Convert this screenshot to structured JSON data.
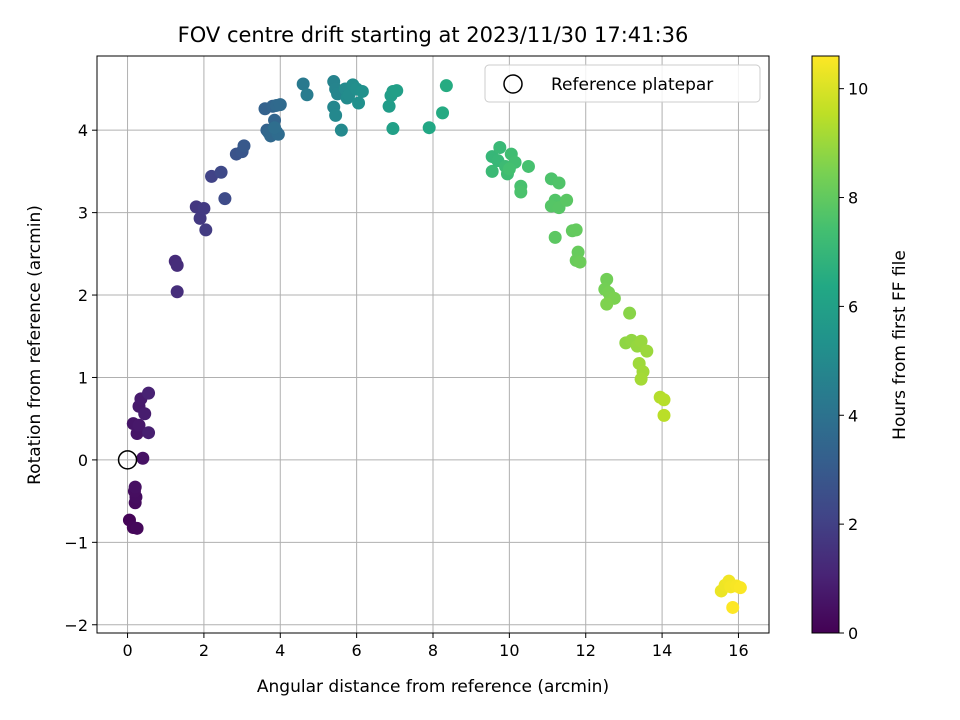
{
  "chart_data": {
    "type": "scatter",
    "title": "FOV centre drift starting at 2023/11/30 17:41:36",
    "xlabel": "Angular distance from reference (arcmin)",
    "ylabel": "Rotation from reference (arcmin)",
    "xlim": [
      -0.8,
      16.8
    ],
    "ylim": [
      -2.1,
      4.9
    ],
    "xticks": [
      0,
      2,
      4,
      6,
      8,
      10,
      12,
      14,
      16
    ],
    "yticks": [
      -2,
      -1,
      0,
      1,
      2,
      3,
      4
    ],
    "xtick_labels": [
      "0",
      "2",
      "4",
      "6",
      "8",
      "10",
      "12",
      "14",
      "16"
    ],
    "ytick_labels": [
      "−2",
      "−1",
      "0",
      "1",
      "2",
      "3",
      "4"
    ],
    "grid": true,
    "legend": {
      "position": "top-right",
      "entries": [
        "Reference platepar"
      ]
    },
    "reference_point": {
      "x": 0,
      "y": 0
    },
    "colorbar": {
      "label": "Hours from first FF file",
      "min": 0,
      "max": 10.6,
      "ticks": [
        0,
        2,
        4,
        6,
        8,
        10
      ],
      "tick_labels": [
        "0",
        "2",
        "4",
        "6",
        "8",
        "10"
      ],
      "colormap": "viridis"
    },
    "points": [
      {
        "x": 0.05,
        "y": -0.73,
        "c": 0.1
      },
      {
        "x": 0.15,
        "y": -0.82,
        "c": 0.15
      },
      {
        "x": 0.25,
        "y": -0.83,
        "c": 0.2
      },
      {
        "x": 0.2,
        "y": -0.52,
        "c": 0.3
      },
      {
        "x": 0.22,
        "y": -0.45,
        "c": 0.35
      },
      {
        "x": 0.18,
        "y": -0.38,
        "c": 0.4
      },
      {
        "x": 0.2,
        "y": -0.33,
        "c": 0.45
      },
      {
        "x": 0.4,
        "y": 0.02,
        "c": 0.5
      },
      {
        "x": 0.25,
        "y": 0.32,
        "c": 0.6
      },
      {
        "x": 0.15,
        "y": 0.44,
        "c": 0.65
      },
      {
        "x": 0.3,
        "y": 0.42,
        "c": 0.7
      },
      {
        "x": 0.3,
        "y": 0.65,
        "c": 0.75
      },
      {
        "x": 0.35,
        "y": 0.74,
        "c": 0.8
      },
      {
        "x": 0.45,
        "y": 0.56,
        "c": 0.85
      },
      {
        "x": 0.55,
        "y": 0.33,
        "c": 0.9
      },
      {
        "x": 0.55,
        "y": 0.81,
        "c": 1.0
      },
      {
        "x": 1.25,
        "y": 2.41,
        "c": 1.3
      },
      {
        "x": 1.3,
        "y": 2.36,
        "c": 1.35
      },
      {
        "x": 1.3,
        "y": 2.04,
        "c": 1.4
      },
      {
        "x": 1.8,
        "y": 3.07,
        "c": 1.7
      },
      {
        "x": 1.9,
        "y": 2.93,
        "c": 1.75
      },
      {
        "x": 2.0,
        "y": 3.05,
        "c": 1.8
      },
      {
        "x": 2.05,
        "y": 2.79,
        "c": 1.85
      },
      {
        "x": 2.2,
        "y": 3.44,
        "c": 2.1
      },
      {
        "x": 2.45,
        "y": 3.49,
        "c": 2.3
      },
      {
        "x": 2.55,
        "y": 3.17,
        "c": 2.4
      },
      {
        "x": 2.85,
        "y": 3.71,
        "c": 2.7
      },
      {
        "x": 3.0,
        "y": 3.74,
        "c": 2.8
      },
      {
        "x": 3.05,
        "y": 3.81,
        "c": 2.9
      },
      {
        "x": 3.6,
        "y": 4.26,
        "c": 3.3
      },
      {
        "x": 3.65,
        "y": 4.0,
        "c": 3.35
      },
      {
        "x": 3.8,
        "y": 4.29,
        "c": 3.4
      },
      {
        "x": 3.85,
        "y": 4.12,
        "c": 3.45
      },
      {
        "x": 3.7,
        "y": 3.97,
        "c": 3.5
      },
      {
        "x": 3.75,
        "y": 3.93,
        "c": 3.55
      },
      {
        "x": 3.9,
        "y": 4.3,
        "c": 3.6
      },
      {
        "x": 4.0,
        "y": 4.31,
        "c": 3.65
      },
      {
        "x": 3.9,
        "y": 3.98,
        "c": 3.7
      },
      {
        "x": 3.95,
        "y": 3.95,
        "c": 3.75
      },
      {
        "x": 3.85,
        "y": 4.03,
        "c": 3.8
      },
      {
        "x": 4.6,
        "y": 4.56,
        "c": 4.3
      },
      {
        "x": 4.7,
        "y": 4.43,
        "c": 4.4
      },
      {
        "x": 5.4,
        "y": 4.59,
        "c": 4.7
      },
      {
        "x": 5.45,
        "y": 4.5,
        "c": 4.75
      },
      {
        "x": 5.5,
        "y": 4.44,
        "c": 4.8
      },
      {
        "x": 5.4,
        "y": 4.28,
        "c": 4.85
      },
      {
        "x": 5.45,
        "y": 4.18,
        "c": 4.9
      },
      {
        "x": 5.6,
        "y": 4.0,
        "c": 4.95
      },
      {
        "x": 5.7,
        "y": 4.5,
        "c": 5.0
      },
      {
        "x": 5.75,
        "y": 4.39,
        "c": 5.05
      },
      {
        "x": 5.8,
        "y": 4.43,
        "c": 5.1
      },
      {
        "x": 5.9,
        "y": 4.55,
        "c": 5.15
      },
      {
        "x": 6.0,
        "y": 4.5,
        "c": 5.2
      },
      {
        "x": 6.05,
        "y": 4.33,
        "c": 5.25
      },
      {
        "x": 6.15,
        "y": 4.47,
        "c": 5.3
      },
      {
        "x": 6.85,
        "y": 4.29,
        "c": 5.8
      },
      {
        "x": 6.9,
        "y": 4.42,
        "c": 5.85
      },
      {
        "x": 6.95,
        "y": 4.47,
        "c": 5.9
      },
      {
        "x": 7.05,
        "y": 4.48,
        "c": 5.95
      },
      {
        "x": 6.95,
        "y": 4.02,
        "c": 6.0
      },
      {
        "x": 7.9,
        "y": 4.03,
        "c": 6.3
      },
      {
        "x": 8.25,
        "y": 4.21,
        "c": 6.45
      },
      {
        "x": 8.35,
        "y": 4.54,
        "c": 6.5
      },
      {
        "x": 9.55,
        "y": 3.68,
        "c": 7.0
      },
      {
        "x": 9.7,
        "y": 3.63,
        "c": 7.05
      },
      {
        "x": 9.75,
        "y": 3.79,
        "c": 7.1
      },
      {
        "x": 9.55,
        "y": 3.5,
        "c": 7.15
      },
      {
        "x": 9.9,
        "y": 3.56,
        "c": 7.2
      },
      {
        "x": 9.95,
        "y": 3.47,
        "c": 7.25
      },
      {
        "x": 10.05,
        "y": 3.71,
        "c": 7.3
      },
      {
        "x": 10.15,
        "y": 3.61,
        "c": 7.35
      },
      {
        "x": 10.0,
        "y": 3.53,
        "c": 7.4
      },
      {
        "x": 10.5,
        "y": 3.56,
        "c": 7.45
      },
      {
        "x": 10.3,
        "y": 3.32,
        "c": 7.5
      },
      {
        "x": 10.3,
        "y": 3.25,
        "c": 7.55
      },
      {
        "x": 11.1,
        "y": 3.41,
        "c": 7.6
      },
      {
        "x": 11.3,
        "y": 3.36,
        "c": 7.65
      },
      {
        "x": 11.2,
        "y": 3.15,
        "c": 7.7
      },
      {
        "x": 11.1,
        "y": 3.08,
        "c": 7.75
      },
      {
        "x": 11.3,
        "y": 3.06,
        "c": 7.8
      },
      {
        "x": 11.5,
        "y": 3.15,
        "c": 7.85
      },
      {
        "x": 11.2,
        "y": 2.7,
        "c": 7.9
      },
      {
        "x": 11.65,
        "y": 2.78,
        "c": 8.0
      },
      {
        "x": 11.75,
        "y": 2.79,
        "c": 8.05
      },
      {
        "x": 11.8,
        "y": 2.52,
        "c": 8.1
      },
      {
        "x": 11.75,
        "y": 2.42,
        "c": 8.15
      },
      {
        "x": 11.85,
        "y": 2.4,
        "c": 8.2
      },
      {
        "x": 12.55,
        "y": 2.19,
        "c": 8.3
      },
      {
        "x": 12.5,
        "y": 2.07,
        "c": 8.35
      },
      {
        "x": 12.6,
        "y": 2.03,
        "c": 8.4
      },
      {
        "x": 12.65,
        "y": 1.97,
        "c": 8.45
      },
      {
        "x": 12.75,
        "y": 1.96,
        "c": 8.5
      },
      {
        "x": 12.55,
        "y": 1.89,
        "c": 8.55
      },
      {
        "x": 13.15,
        "y": 1.78,
        "c": 8.7
      },
      {
        "x": 13.05,
        "y": 1.42,
        "c": 8.8
      },
      {
        "x": 13.2,
        "y": 1.45,
        "c": 8.85
      },
      {
        "x": 13.35,
        "y": 1.38,
        "c": 8.9
      },
      {
        "x": 13.45,
        "y": 1.44,
        "c": 8.95
      },
      {
        "x": 13.6,
        "y": 1.32,
        "c": 9.0
      },
      {
        "x": 13.4,
        "y": 1.17,
        "c": 9.05
      },
      {
        "x": 13.5,
        "y": 1.07,
        "c": 9.1
      },
      {
        "x": 13.45,
        "y": 0.98,
        "c": 9.15
      },
      {
        "x": 13.95,
        "y": 0.76,
        "c": 9.4
      },
      {
        "x": 14.05,
        "y": 0.73,
        "c": 9.45
      },
      {
        "x": 14.05,
        "y": 0.54,
        "c": 9.5
      },
      {
        "x": 15.55,
        "y": -1.59,
        "c": 10.3
      },
      {
        "x": 15.65,
        "y": -1.52,
        "c": 10.35
      },
      {
        "x": 15.75,
        "y": -1.47,
        "c": 10.4
      },
      {
        "x": 15.8,
        "y": -1.54,
        "c": 10.45
      },
      {
        "x": 15.95,
        "y": -1.53,
        "c": 10.5
      },
      {
        "x": 16.05,
        "y": -1.55,
        "c": 10.55
      },
      {
        "x": 15.85,
        "y": -1.79,
        "c": 10.6
      }
    ]
  }
}
